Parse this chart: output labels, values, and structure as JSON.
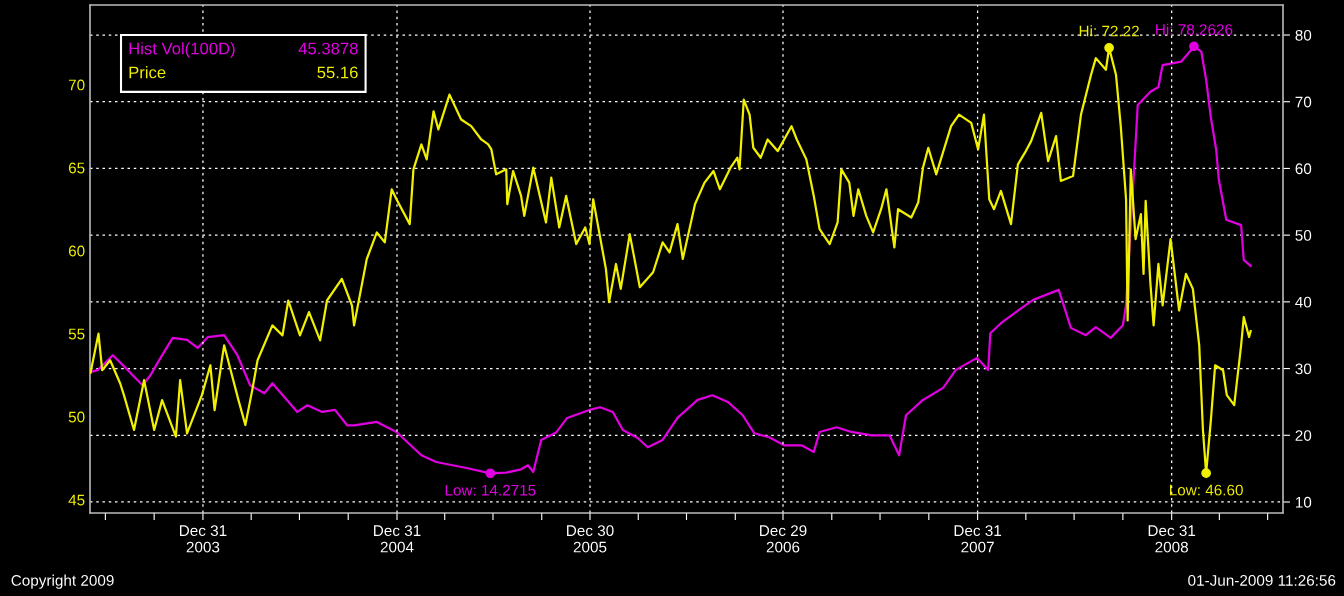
{
  "chart_data": {
    "type": "line",
    "xlim": [
      "2003-06-01",
      "2009-07-29"
    ],
    "xticks": [
      {
        "value": "2003-06-30",
        "label": null
      },
      {
        "value": "2003-09-30",
        "label": null
      },
      {
        "value": "2003-12-31",
        "label": "Dec 31\n2003"
      },
      {
        "value": "2004-03-31",
        "label": null
      },
      {
        "value": "2004-06-30",
        "label": null
      },
      {
        "value": "2004-09-30",
        "label": null
      },
      {
        "value": "2004-12-31",
        "label": "Dec 31\n2004"
      },
      {
        "value": "2005-03-31",
        "label": null
      },
      {
        "value": "2005-06-30",
        "label": null
      },
      {
        "value": "2005-09-30",
        "label": null
      },
      {
        "value": "2005-12-30",
        "label": "Dec 30\n2005"
      },
      {
        "value": "2006-03-31",
        "label": null
      },
      {
        "value": "2006-06-30",
        "label": null
      },
      {
        "value": "2006-09-30",
        "label": null
      },
      {
        "value": "2006-12-29",
        "label": "Dec 29\n2006"
      },
      {
        "value": "2007-03-31",
        "label": null
      },
      {
        "value": "2007-06-30",
        "label": null
      },
      {
        "value": "2007-09-30",
        "label": null
      },
      {
        "value": "2007-12-31",
        "label": "Dec 31\n2007"
      },
      {
        "value": "2008-03-31",
        "label": null
      },
      {
        "value": "2008-06-30",
        "label": null
      },
      {
        "value": "2008-09-30",
        "label": null
      },
      {
        "value": "2008-12-31",
        "label": "Dec 31\n2008"
      },
      {
        "value": "2009-03-31",
        "label": null
      },
      {
        "value": "2009-06-30",
        "label": null
      }
    ],
    "ylim": [
      44.2,
      74.8
    ],
    "yticks": [
      45,
      50,
      55,
      60,
      65,
      70
    ],
    "y2lim": [
      8.35,
      84.5
    ],
    "y2ticks": [
      10,
      20,
      30,
      40,
      50,
      60,
      70,
      80
    ],
    "grid": true,
    "series": [
      {
        "name": "Hist Vol(100D)",
        "color": "#e000e0",
        "axis": "y2",
        "x": [
          "2003-06-04",
          "2003-06-16",
          "2003-07-14",
          "2003-08-11",
          "2003-09-08",
          "2003-09-23",
          "2003-10-12",
          "2003-11-04",
          "2003-12-01",
          "2003-12-21",
          "2004-01-09",
          "2004-02-09",
          "2004-03-05",
          "2004-03-29",
          "2004-04-25",
          "2004-05-10",
          "2004-06-26",
          "2004-07-15",
          "2004-08-12",
          "2004-09-05",
          "2004-09-28",
          "2004-10-11",
          "2004-11-23",
          "2004-12-30",
          "2005-02-15",
          "2005-03-15",
          "2005-05-11",
          "2005-06-25",
          "2005-07-25",
          "2005-08-22",
          "2005-09-04",
          "2005-09-14",
          "2005-09-29",
          "2005-10-27",
          "2005-11-17",
          "2005-12-29",
          "2006-01-18",
          "2006-02-11",
          "2006-03-02",
          "2006-03-30",
          "2006-04-18",
          "2006-05-16",
          "2006-06-13",
          "2006-07-21",
          "2006-08-18",
          "2006-09-16",
          "2006-10-14",
          "2006-11-05",
          "2006-12-03",
          "2006-12-31",
          "2007-02-02",
          "2007-02-25",
          "2007-03-08",
          "2007-04-09",
          "2007-05-07",
          "2007-06-14",
          "2007-07-18",
          "2007-08-05",
          "2007-08-18",
          "2007-09-19",
          "2007-10-27",
          "2007-11-20",
          "2007-12-30",
          "2008-01-20",
          "2008-01-24",
          "2008-02-13",
          "2008-03-18",
          "2008-04-14",
          "2008-06-01",
          "2008-06-24",
          "2008-07-22",
          "2008-08-10",
          "2008-09-07",
          "2008-09-30",
          "2008-10-06",
          "2008-10-19",
          "2008-10-28",
          "2008-11-21",
          "2008-12-06",
          "2008-12-14",
          "2009-01-18",
          "2009-02-06",
          "2009-02-11",
          "2009-02-25",
          "2009-03-06",
          "2009-03-15",
          "2009-03-25",
          "2009-03-30",
          "2009-04-13",
          "2009-05-11",
          "2009-05-16",
          "2009-05-29"
        ],
        "values": [
          29.5,
          29.8,
          32.0,
          29.8,
          27.5,
          29.0,
          31.6,
          34.6,
          34.3,
          33.1,
          34.7,
          35.0,
          32.0,
          27.5,
          26.3,
          27.8,
          23.5,
          24.5,
          23.5,
          23.8,
          21.5,
          21.5,
          22.0,
          20.5,
          17.0,
          16.0,
          15.1,
          14.3,
          14.4,
          14.9,
          15.5,
          14.5,
          19.3,
          20.4,
          22.6,
          23.8,
          24.2,
          23.5,
          20.8,
          19.6,
          18.2,
          19.3,
          22.6,
          25.3,
          26.0,
          25.0,
          23.0,
          20.3,
          19.7,
          18.5,
          18.5,
          17.5,
          20.5,
          21.2,
          20.5,
          20.0,
          20.0,
          17.0,
          23.0,
          25.3,
          27.1,
          29.8,
          31.6,
          29.8,
          35.3,
          36.8,
          38.8,
          40.3,
          41.8,
          36.1,
          35.0,
          36.2,
          34.6,
          36.5,
          39.5,
          56.8,
          69.5,
          71.5,
          72.2,
          75.5,
          76.0,
          77.8,
          78.3,
          77.5,
          73.3,
          67.6,
          62.8,
          58.3,
          52.3,
          51.5,
          46.3,
          45.4
        ]
      },
      {
        "name": "Price",
        "color": "#f0f000",
        "x": [
          "2003-06-02",
          "2003-06-17",
          "2003-06-24",
          "2003-07-09",
          "2003-07-28",
          "2003-08-04",
          "2003-08-23",
          "2003-09-11",
          "2003-09-30",
          "2003-10-15",
          "2003-11-10",
          "2003-11-18",
          "2003-12-01",
          "2003-12-29",
          "2004-01-14",
          "2004-01-22",
          "2004-02-06",
          "2004-02-09",
          "2004-03-07",
          "2004-03-20",
          "2004-04-02",
          "2004-04-12",
          "2004-05-10",
          "2004-05-29",
          "2004-06-09",
          "2004-07-01",
          "2004-07-18",
          "2004-08-08",
          "2004-08-21",
          "2004-09-18",
          "2004-10-07",
          "2004-10-11",
          "2004-11-04",
          "2004-11-23",
          "2004-12-08",
          "2004-12-21",
          "2004-12-30",
          "2005-01-24",
          "2005-01-31",
          "2005-02-15",
          "2005-02-25",
          "2005-03-10",
          "2005-03-19",
          "2005-04-09",
          "2005-05-01",
          "2005-05-20",
          "2005-06-08",
          "2005-06-21",
          "2005-06-27",
          "2005-07-06",
          "2005-07-25",
          "2005-07-27",
          "2005-08-07",
          "2005-08-22",
          "2005-08-28",
          "2005-09-14",
          "2005-10-08",
          "2005-10-18",
          "2005-11-02",
          "2005-11-15",
          "2005-12-04",
          "2005-12-21",
          "2005-12-29",
          "2006-01-05",
          "2006-01-29",
          "2006-02-04",
          "2006-02-17",
          "2006-02-26",
          "2006-03-15",
          "2006-04-03",
          "2006-04-28",
          "2006-05-16",
          "2006-05-29",
          "2006-06-13",
          "2006-06-23",
          "2006-07-16",
          "2006-08-03",
          "2006-08-20",
          "2006-09-01",
          "2006-09-21",
          "2006-10-04",
          "2006-10-08",
          "2006-10-16",
          "2006-10-27",
          "2006-11-03",
          "2006-11-17",
          "2006-11-30",
          "2006-12-19",
          "2007-01-14",
          "2007-01-24",
          "2007-02-11",
          "2007-02-25",
          "2007-03-08",
          "2007-03-27",
          "2007-04-11",
          "2007-04-18",
          "2007-05-03",
          "2007-05-11",
          "2007-05-20",
          "2007-06-04",
          "2007-06-17",
          "2007-07-02",
          "2007-07-12",
          "2007-07-27",
          "2007-08-03",
          "2007-08-28",
          "2007-09-10",
          "2007-09-19",
          "2007-09-29",
          "2007-10-14",
          "2007-11-11",
          "2007-11-26",
          "2007-12-19",
          "2008-01-01",
          "2008-01-12",
          "2008-01-22",
          "2008-01-31",
          "2008-02-13",
          "2008-03-03",
          "2008-03-16",
          "2008-03-31",
          "2008-04-10",
          "2008-04-29",
          "2008-05-12",
          "2008-05-27",
          "2008-06-05",
          "2008-06-28",
          "2008-07-13",
          "2008-08-01",
          "2008-08-10",
          "2008-08-29",
          "2008-09-04",
          "2008-09-17",
          "2008-09-26",
          "2008-10-06",
          "2008-10-09",
          "2008-10-15",
          "2008-10-24",
          "2008-11-03",
          "2008-11-08",
          "2008-11-12",
          "2008-11-21",
          "2008-11-27",
          "2008-12-06",
          "2008-12-14",
          "2008-12-29",
          "2009-01-14",
          "2009-01-27",
          "2009-02-09",
          "2009-02-21",
          "2009-02-28",
          "2009-03-06",
          "2009-03-15",
          "2009-03-23",
          "2009-04-07",
          "2009-04-14",
          "2009-04-28",
          "2009-05-11",
          "2009-05-16",
          "2009-05-26",
          "2009-05-29"
        ],
        "values": [
          52.65,
          55.0,
          52.8,
          53.4,
          52.0,
          51.3,
          49.2,
          52.2,
          49.2,
          51.0,
          48.8,
          52.2,
          49.0,
          51.3,
          53.1,
          50.4,
          53.7,
          54.3,
          51.0,
          49.5,
          51.6,
          53.4,
          55.5,
          54.9,
          57.0,
          54.9,
          56.3,
          54.6,
          57.0,
          58.3,
          56.7,
          55.5,
          59.5,
          61.1,
          60.5,
          63.7,
          63.1,
          61.6,
          64.9,
          66.4,
          65.5,
          68.4,
          67.3,
          69.4,
          67.9,
          67.5,
          66.7,
          66.4,
          66.1,
          64.6,
          64.9,
          62.8,
          64.8,
          63.3,
          62.1,
          65.0,
          61.7,
          64.4,
          61.4,
          63.3,
          60.4,
          61.4,
          60.4,
          63.1,
          58.9,
          56.9,
          59.2,
          57.7,
          61.0,
          57.8,
          58.7,
          60.5,
          59.9,
          61.6,
          59.5,
          62.8,
          64.1,
          64.8,
          63.7,
          65.0,
          65.6,
          64.9,
          69.1,
          68.2,
          66.2,
          65.6,
          66.7,
          66.0,
          67.5,
          66.7,
          65.5,
          63.3,
          61.3,
          60.4,
          61.7,
          64.9,
          64.1,
          62.1,
          63.7,
          62.1,
          61.1,
          62.5,
          63.7,
          60.2,
          62.5,
          62.0,
          62.9,
          65.0,
          66.2,
          64.6,
          67.5,
          68.2,
          67.7,
          66.1,
          68.2,
          63.1,
          62.5,
          63.6,
          61.6,
          65.2,
          66.0,
          66.6,
          68.3,
          65.4,
          66.9,
          64.2,
          64.5,
          68.2,
          70.6,
          71.6,
          70.9,
          72.22,
          70.6,
          67.5,
          63.1,
          55.8,
          64.9,
          60.7,
          62.2,
          58.6,
          63.0,
          58.0,
          55.5,
          59.2,
          56.7,
          60.7,
          56.4,
          58.6,
          57.7,
          54.3,
          49.2,
          46.6,
          49.8,
          53.1,
          52.8,
          51.3,
          50.7,
          54.3,
          56.0,
          54.8,
          55.16
        ]
      }
    ],
    "annotations": [
      "45.3878",
      "55.16",
      "Copyright 2009",
      "01-Jun-2009 11:26:56",
      {
        "text": "Hi: 72.22",
        "x": "2008-09-04",
        "y": 72.22
      },
      "Hi: 78.2626",
      "Low: 14.2715",
      {
        "text": "Low: 46.60",
        "x": "2009-03-06",
        "y": 46.6
      }
    ]
  }
}
